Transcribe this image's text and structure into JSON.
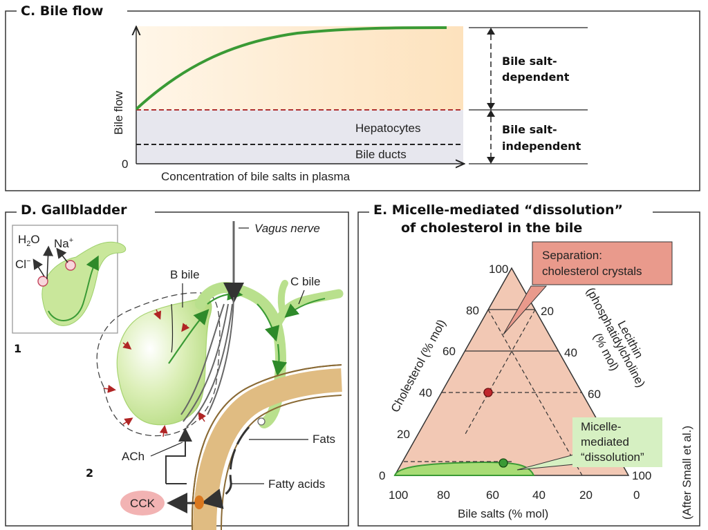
{
  "panel_c": {
    "title": "C. Bile flow",
    "y_axis_label": "Bile flow",
    "y_zero": "0",
    "x_axis_label": "Concentration of bile salts in plasma",
    "hepatocytes_label": "Hepatocytes",
    "bile_ducts_label": "Bile ducts",
    "dependent_label_line1": "Bile salt-",
    "dependent_label_line2": "dependent",
    "independent_label_line1": "Bile salt-",
    "independent_label_line2": "independent",
    "colors": {
      "curve": "#3a9a35",
      "baseline_dash": "#b03030",
      "ducts_dash": "#222222",
      "upper_fill": "#fde9cc",
      "lower_fill": "#e6e6ec"
    }
  },
  "panel_d": {
    "title": "D. Gallbladder",
    "inset_number": "1",
    "main_number": "2",
    "h2o_label": "H",
    "h2o_sub": "2",
    "h2o_tail": "O",
    "na_label": "Na",
    "na_sup": "+",
    "cl_label": "Cl",
    "cl_sup": "−",
    "vagus_label": "Vagus nerve",
    "b_bile_label": "B bile",
    "c_bile_label": "C bile",
    "fats_label": "Fats",
    "fatty_acids_label": "Fatty acids",
    "ach_label": "ACh",
    "cck_label": "CCK",
    "colors": {
      "gallbladder": "#c9e79b",
      "bile_arrow": "#3a9a35",
      "intestine": "#e0bc82",
      "cck": "#f2b3b3",
      "contraction_arrow": "#b02525"
    }
  },
  "panel_e": {
    "title_line1": "E. Micelle-mediated “dissolution”",
    "title_line2": "of cholesterol in the bile",
    "separation_label_line1": "Separation:",
    "separation_label_line2": "cholesterol crystals",
    "micelle_label_line1": "Micelle-",
    "micelle_label_line2": "mediated",
    "micelle_label_line3": "“dissolution”",
    "cholesterol_axis_label": "Cholesterol (% mol)",
    "lecithin_axis_label_line1": "Lecithin",
    "lecithin_axis_label_line2": "(phosphatidylcholine)",
    "lecithin_axis_label_line3": "(% mol)",
    "bile_salts_axis_label": "Bile salts (% mol)",
    "source_note": "(After Small et al.)",
    "cholesterol_ticks": [
      "100",
      "80",
      "60",
      "40",
      "20",
      "0"
    ],
    "lecithin_ticks": [
      "20",
      "40",
      "60",
      "100"
    ],
    "bile_salt_ticks": [
      "100",
      "80",
      "60",
      "40",
      "20",
      "0"
    ],
    "colors": {
      "triangle": "#f2c8b4",
      "micelle_zone": "#a8dc75",
      "red_point": "#c0272d",
      "green_point": "#3a9a35",
      "separation_box": "#e99a8c",
      "micelle_box": "#d6f0c2"
    }
  }
}
